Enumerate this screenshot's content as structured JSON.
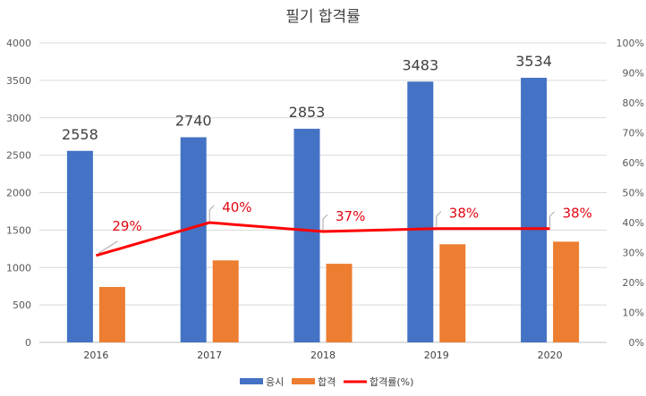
{
  "chart_data": {
    "type": "bar",
    "title": "필기 합격률",
    "categories": [
      "2016",
      "2017",
      "2018",
      "2019",
      "2020"
    ],
    "series": [
      {
        "name": "응시",
        "kind": "bar",
        "axis": "left",
        "color": "#4472c4",
        "values": [
          2558,
          2740,
          2853,
          3483,
          3534
        ]
      },
      {
        "name": "합격",
        "kind": "bar",
        "axis": "left",
        "color": "#ed7d31",
        "values": [
          740,
          1095,
          1050,
          1310,
          1345
        ]
      },
      {
        "name": "합격률(%)",
        "kind": "line",
        "axis": "right",
        "color": "#ff0000",
        "values": [
          29,
          40,
          37,
          38,
          38
        ]
      }
    ],
    "value_labels": [
      "2558",
      "2740",
      "2853",
      "3483",
      "3534"
    ],
    "rate_labels": [
      "29%",
      "40%",
      "37%",
      "38%",
      "38%"
    ],
    "y_left": {
      "ylim": [
        0,
        4000
      ],
      "ticks": [
        "0",
        "500",
        "1000",
        "1500",
        "2000",
        "2500",
        "3000",
        "3500",
        "4000"
      ]
    },
    "y_right": {
      "ylim": [
        0,
        100
      ],
      "ticks": [
        "0%",
        "10%",
        "20%",
        "30%",
        "40%",
        "50%",
        "60%",
        "70%",
        "80%",
        "90%",
        "100%"
      ]
    },
    "grid": true,
    "legend": "bottom"
  }
}
